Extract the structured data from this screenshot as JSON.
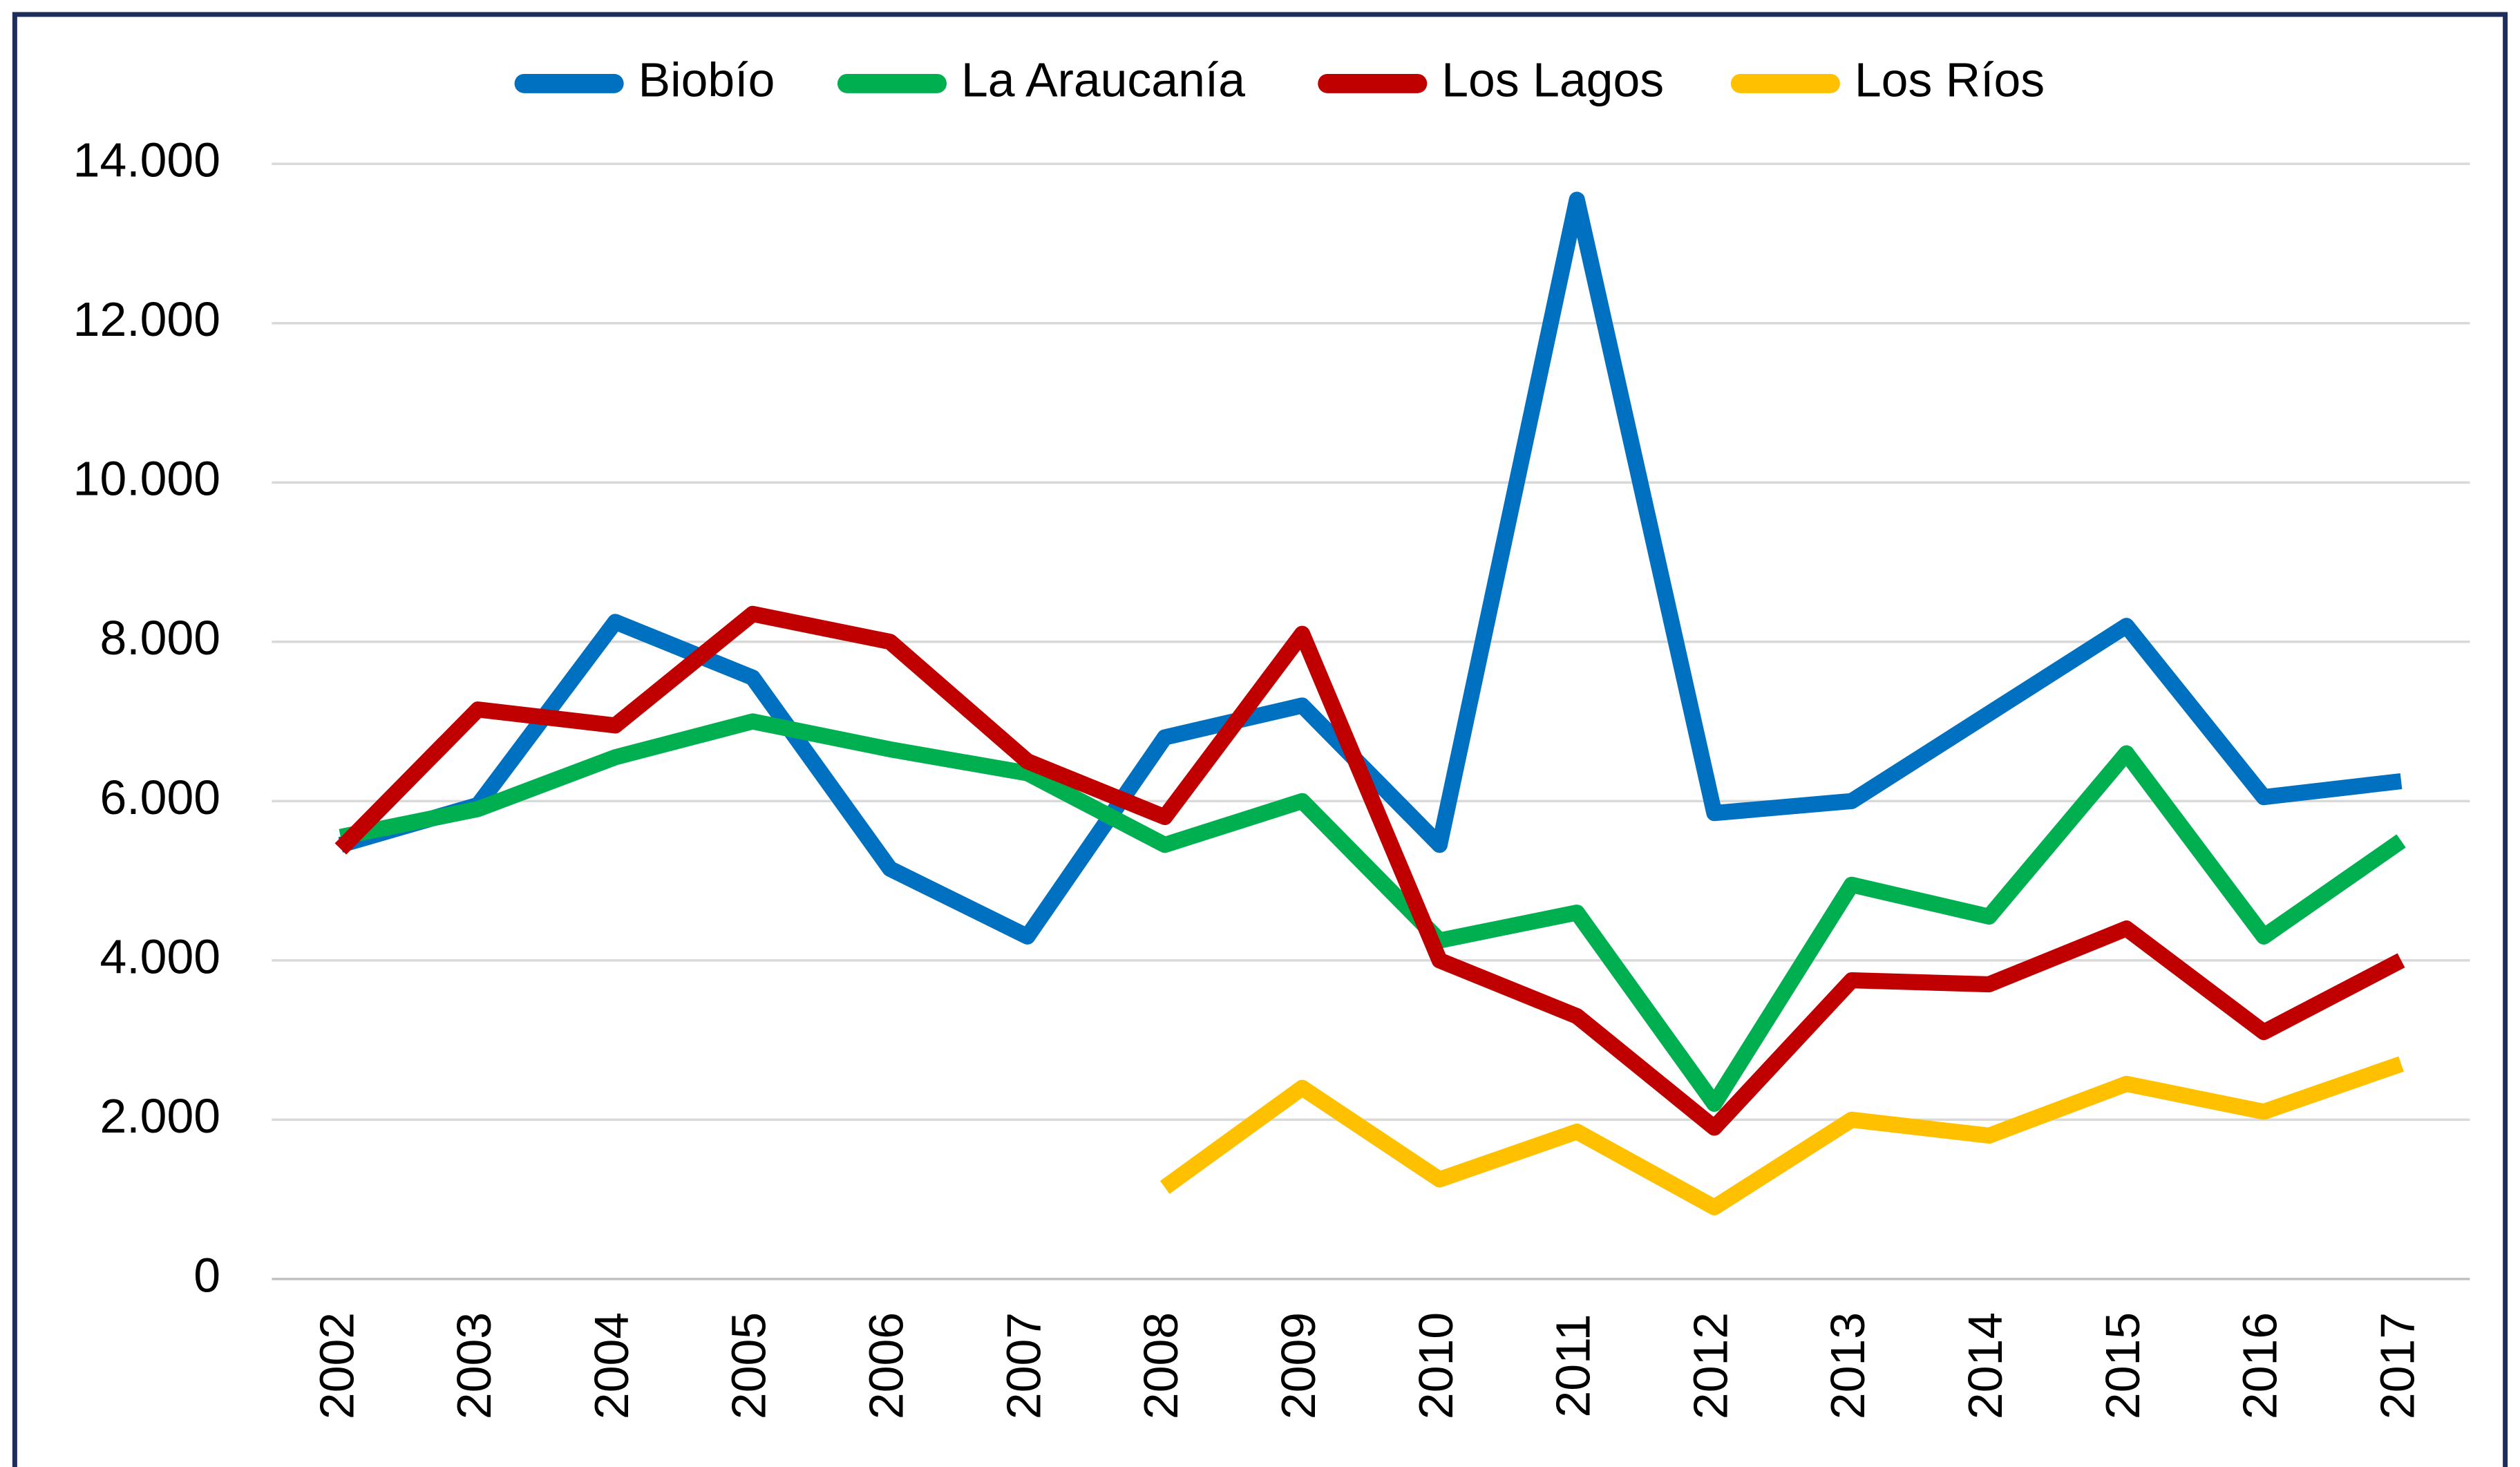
{
  "chart_data": {
    "type": "line",
    "categories": [
      "2002",
      "2003",
      "2004",
      "2005",
      "2006",
      "2007",
      "2008",
      "2009",
      "2010",
      "2011",
      "2012",
      "2013",
      "2014",
      "2015",
      "2016",
      "2017"
    ],
    "series": [
      {
        "name": "Biobío",
        "color": "#0070c0",
        "values": [
          5450,
          5950,
          8250,
          7550,
          5150,
          4300,
          6800,
          7200,
          5450,
          13550,
          5850,
          6000,
          7100,
          8200,
          6050,
          6250
        ]
      },
      {
        "name": "La Araucanía",
        "color": "#00b050",
        "values": [
          5550,
          5900,
          6550,
          7000,
          6650,
          6350,
          5450,
          6000,
          4250,
          4600,
          2200,
          4950,
          4550,
          6600,
          4300,
          5500
        ]
      },
      {
        "name": "Los Lagos",
        "color": "#c00000",
        "values": [
          5400,
          7150,
          6950,
          8350,
          8000,
          6500,
          5800,
          8100,
          4000,
          3300,
          1900,
          3750,
          3700,
          4400,
          3100,
          4000
        ]
      },
      {
        "name": "Los Ríos",
        "color": "#ffc000",
        "values": [
          null,
          null,
          null,
          null,
          null,
          null,
          1150,
          2400,
          1250,
          1850,
          900,
          2000,
          1800,
          2450,
          2100,
          2700
        ]
      }
    ],
    "ylim": [
      0,
      14000
    ],
    "yticks": [
      0,
      {
        "value": 2000,
        "label": "2.000"
      },
      {
        "value": 4000,
        "label": "4.000"
      },
      {
        "value": 6000,
        "label": "6.000"
      },
      {
        "value": 8000,
        "label": "8.000"
      },
      {
        "value": 10000,
        "label": "10.000"
      },
      {
        "value": 12000,
        "label": "12.000"
      },
      {
        "value": 14000,
        "label": "14.000"
      }
    ],
    "grid": true,
    "legend": "top"
  }
}
